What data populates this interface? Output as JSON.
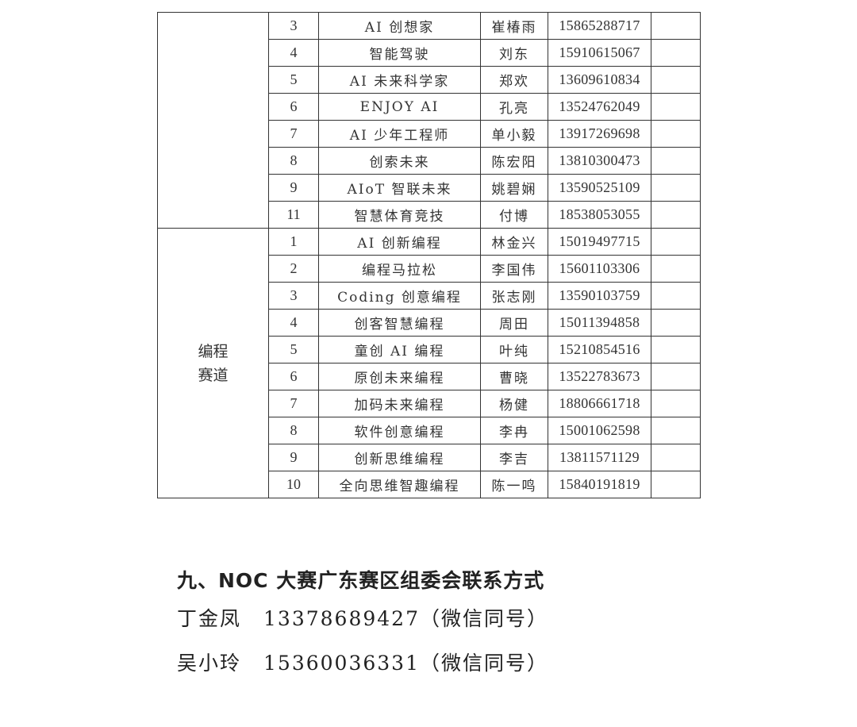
{
  "table": {
    "groups": [
      {
        "category": "",
        "rows": [
          {
            "no": "3",
            "team": "AI 创想家",
            "name": "崔椿雨",
            "phone": "15865288717",
            "extra": ""
          },
          {
            "no": "4",
            "team": "智能驾驶",
            "name": "刘东",
            "phone": "15910615067",
            "extra": ""
          },
          {
            "no": "5",
            "team": "AI 未来科学家",
            "name": "郑欢",
            "phone": "13609610834",
            "extra": ""
          },
          {
            "no": "6",
            "team": "ENJOY AI",
            "name": "孔亮",
            "phone": "13524762049",
            "extra": ""
          },
          {
            "no": "7",
            "team": "AI 少年工程师",
            "name": "单小毅",
            "phone": "13917269698",
            "extra": ""
          },
          {
            "no": "8",
            "team": "创索未来",
            "name": "陈宏阳",
            "phone": "13810300473",
            "extra": ""
          },
          {
            "no": "9",
            "team": "AIoT 智联未来",
            "name": "姚碧娴",
            "phone": "13590525109",
            "extra": ""
          },
          {
            "no": "11",
            "team": "智慧体育竞技",
            "name": "付博",
            "phone": "18538053055",
            "extra": ""
          }
        ]
      },
      {
        "category": "编程\n赛道",
        "rows": [
          {
            "no": "1",
            "team": "AI 创新编程",
            "name": "林金兴",
            "phone": "15019497715",
            "extra": ""
          },
          {
            "no": "2",
            "team": "编程马拉松",
            "name": "李国伟",
            "phone": "15601103306",
            "extra": ""
          },
          {
            "no": "3",
            "team": "Coding 创意编程",
            "name": "张志刚",
            "phone": "13590103759",
            "extra": ""
          },
          {
            "no": "4",
            "team": "创客智慧编程",
            "name": "周田",
            "phone": "15011394858",
            "extra": ""
          },
          {
            "no": "5",
            "team": "童创 AI 编程",
            "name": "叶纯",
            "phone": "15210854516",
            "extra": ""
          },
          {
            "no": "6",
            "team": "原创未来编程",
            "name": "曹晓",
            "phone": "13522783673",
            "extra": ""
          },
          {
            "no": "7",
            "team": "加码未来编程",
            "name": "杨健",
            "phone": "18806661718",
            "extra": ""
          },
          {
            "no": "8",
            "team": "软件创意编程",
            "name": "李冉",
            "phone": "15001062598",
            "extra": ""
          },
          {
            "no": "9",
            "team": "创新思维编程",
            "name": "李吉",
            "phone": "13811571129",
            "extra": ""
          },
          {
            "no": "10",
            "team": "全向思维智趣编程",
            "name": "陈一鸣",
            "phone": "15840191819",
            "extra": ""
          }
        ]
      }
    ]
  },
  "section": {
    "heading": "九、NOC 大赛广东赛区组委会联系方式",
    "contacts": [
      {
        "name": "丁金凤",
        "phone": "13378689427",
        "note": "（微信同号）"
      },
      {
        "name": "吴小玲",
        "phone": "15360036331",
        "note": "（微信同号）"
      }
    ]
  }
}
